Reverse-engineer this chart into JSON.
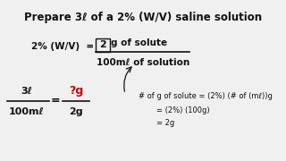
{
  "bg_color": "#f0f0f0",
  "title": "Prepare 3ℓ of a 2% (W/V) saline solution",
  "title_fs": 8.5,
  "black": "#111111",
  "red": "#cc0000",
  "note1": "# of g of solute = (2%) (# of (mℓ))g",
  "note2": "= (2%) (100g)",
  "note3": "= 2g"
}
